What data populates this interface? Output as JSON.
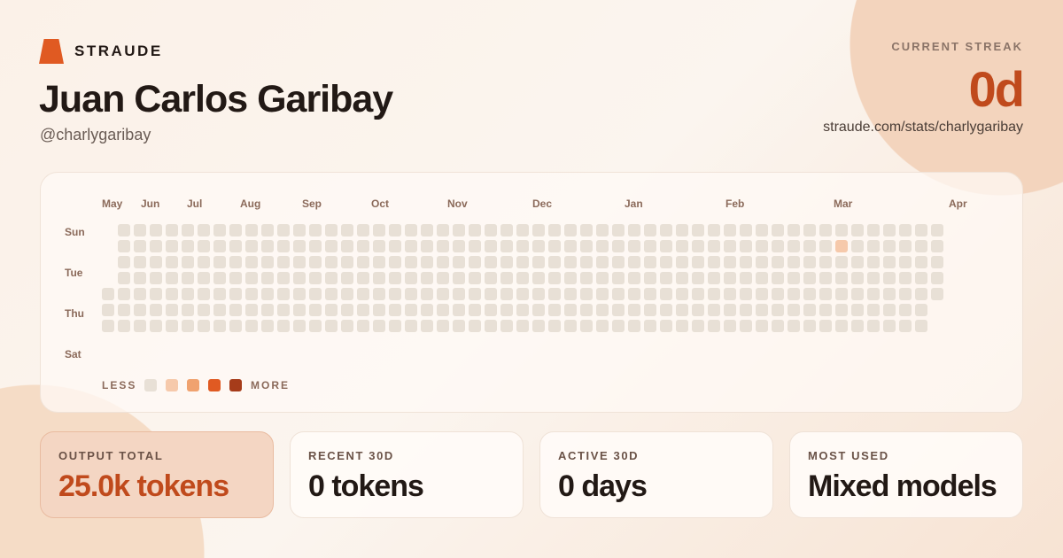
{
  "brand": {
    "name": "STRAUDE",
    "color": "#e05a22"
  },
  "profile": {
    "name": "Juan Carlos Garibay",
    "handle": "@charlygaribay"
  },
  "streak": {
    "label": "CURRENT STREAK",
    "value": "0d",
    "url": "straude.com/stats/charlygaribay"
  },
  "heatmap": {
    "months": [
      "May",
      "Jun",
      "Jul",
      "Aug",
      "Sep",
      "Oct",
      "Nov",
      "Dec",
      "Jan",
      "Feb",
      "Mar",
      "Apr"
    ],
    "days": [
      "Sun",
      "Tue",
      "Thu",
      "Sat"
    ],
    "weeks": 53,
    "active_cells": [
      {
        "week": 46,
        "day": 1,
        "level": 1
      }
    ],
    "legend": {
      "less": "LESS",
      "more": "MORE",
      "colors": [
        "#e8e0d6",
        "#f6c9ab",
        "#f0a26f",
        "#e05a22",
        "#a63c1a"
      ]
    }
  },
  "stats": [
    {
      "label": "OUTPUT TOTAL",
      "value": "25.0k tokens",
      "highlight": true
    },
    {
      "label": "RECENT 30D",
      "value": "0 tokens"
    },
    {
      "label": "ACTIVE 30D",
      "value": "0 days"
    },
    {
      "label": "MOST USED",
      "value": "Mixed models"
    }
  ]
}
